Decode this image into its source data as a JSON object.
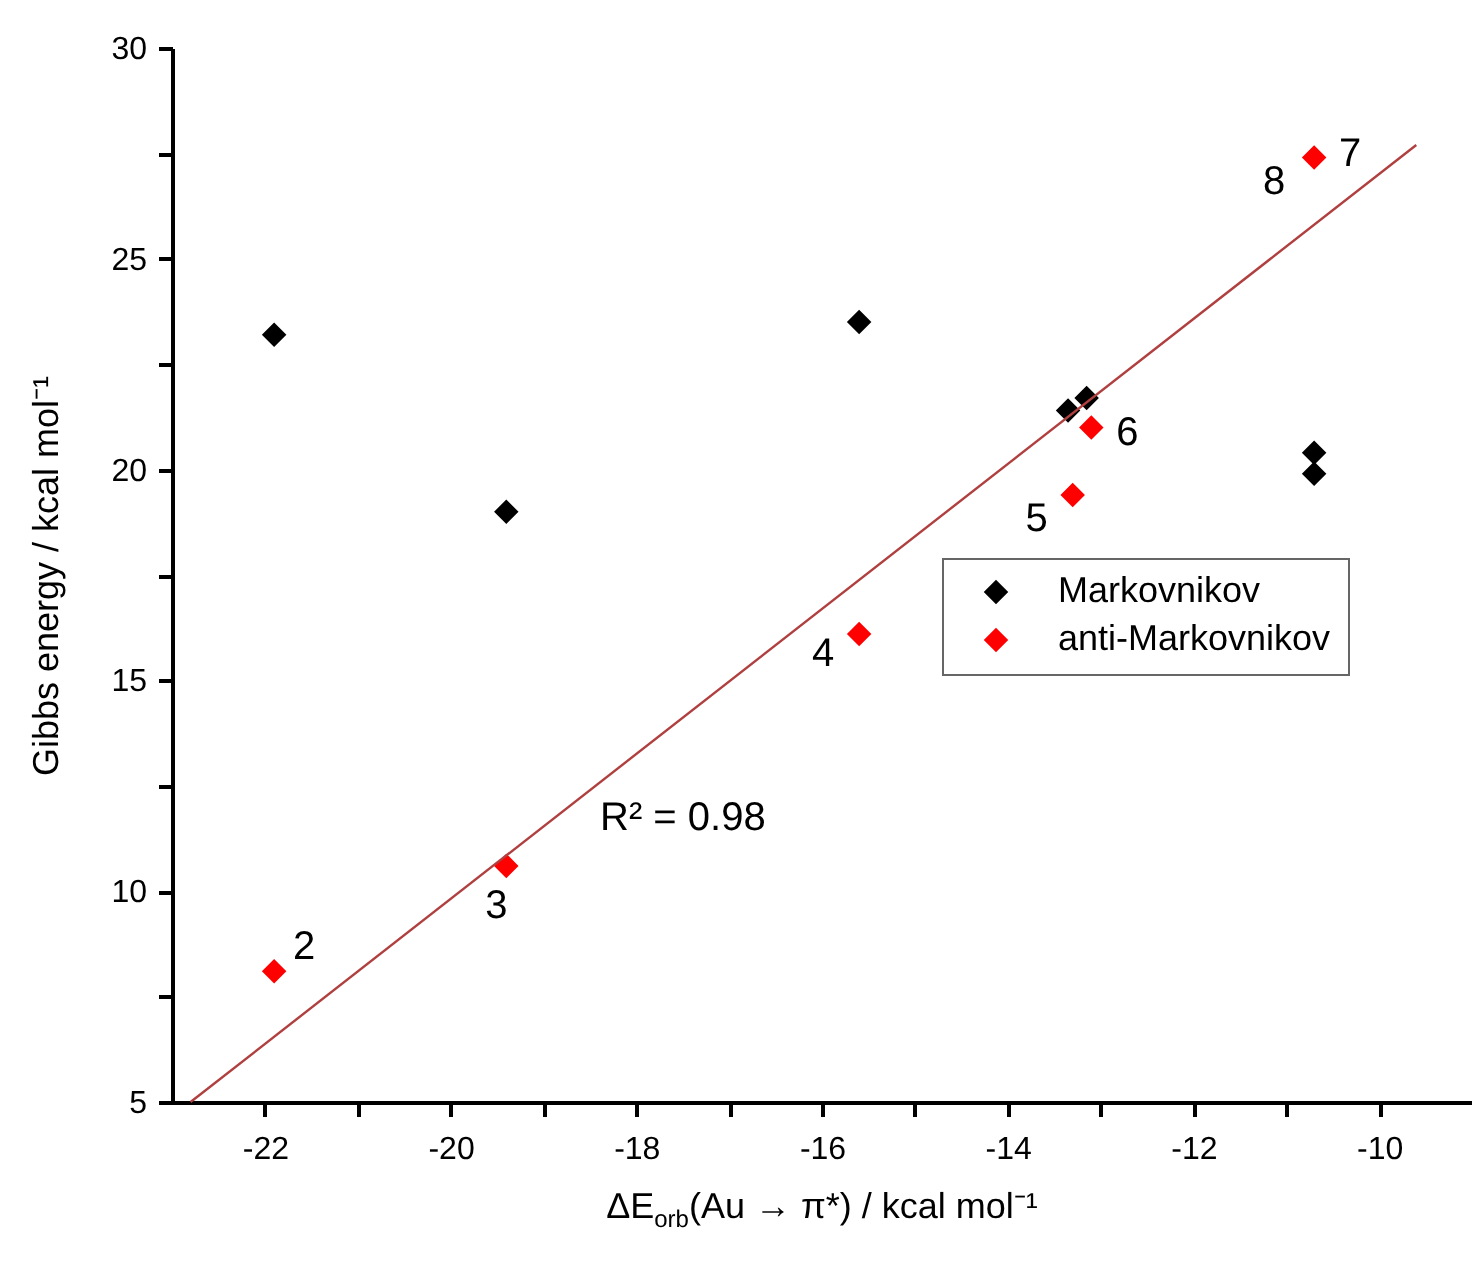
{
  "chart_data": {
    "type": "scatter",
    "xlabel": "ΔE$_{orb}$(Au → π*) / kcal mol⁻¹",
    "ylabel": "Gibbs energy / kcal mol⁻¹",
    "xlim": [
      -23,
      -9
    ],
    "xticks": [
      -22,
      {
        "value": -21,
        "label": null
      },
      -20,
      {
        "value": -19,
        "label": null
      },
      -18,
      {
        "value": -17,
        "label": null
      },
      -16,
      {
        "value": -15,
        "label": null
      },
      -14,
      {
        "value": -13,
        "label": null
      },
      -12,
      {
        "value": -11,
        "label": null
      },
      -10
    ],
    "ylim": [
      5,
      30
    ],
    "yticks": [
      5,
      {
        "value": 7.5,
        "label": null
      },
      10,
      {
        "value": 12.5,
        "label": null
      },
      15,
      {
        "value": 17.5,
        "label": null
      },
      20,
      {
        "value": 22.5,
        "label": null
      },
      25,
      {
        "value": 27.5,
        "label": null
      },
      30
    ],
    "grid": false,
    "legend": "right",
    "series": [
      {
        "name": "Markovnikov",
        "color": "#000000",
        "marker": "diamond",
        "x": [
          -21.9,
          -19.4,
          -15.6,
          -13.35,
          -13.15,
          -10.7,
          -10.7
        ],
        "values": [
          23.2,
          19.0,
          23.5,
          21.4,
          21.7,
          20.4,
          19.9
        ]
      },
      {
        "name": "anti-Markovnikov",
        "color": "#ff0000",
        "marker": "diamond",
        "x": [
          -21.9,
          -19.4,
          -15.6,
          -13.3,
          -13.1,
          -10.7
        ],
        "values": [
          8.1,
          10.6,
          16.1,
          19.4,
          21.0,
          27.4
        ]
      },
      {
        "type": "line",
        "color": "#b04040",
        "marker": "none",
        "x": [
          -22.8,
          -9.6
        ],
        "values": [
          5,
          27.7
        ]
      }
    ],
    "annotations": [
      {
        "text": "2",
        "x": -21.9,
        "y": 8.1
      },
      {
        "text": "3",
        "x": -19.4,
        "y": 10.6
      },
      {
        "text": "4",
        "x": -15.6,
        "y": 16.1
      },
      {
        "text": "5",
        "x": -13.3,
        "y": 19.4
      },
      {
        "text": "6",
        "x": -13.1,
        "y": 21.0
      },
      {
        "text": "7",
        "x": -10.7,
        "y": 27.4
      },
      {
        "text": "8",
        "x": -10.7,
        "y": 27.4
      },
      "R² = 0.98"
    ]
  }
}
